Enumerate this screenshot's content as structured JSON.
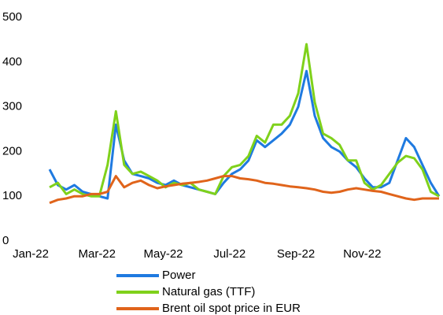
{
  "chart_data": {
    "type": "line",
    "categories": [
      "Jan-22",
      null,
      null,
      null,
      null,
      null,
      null,
      null,
      "Mar-22",
      null,
      null,
      null,
      null,
      null,
      null,
      null,
      "May-22",
      null,
      null,
      null,
      null,
      null,
      null,
      null,
      "Jul-22",
      null,
      null,
      null,
      null,
      null,
      null,
      null,
      "Sep-22",
      null,
      null,
      null,
      null,
      null,
      null,
      null,
      "Nov-22",
      null,
      null,
      null,
      null,
      null,
      null,
      null
    ],
    "series": [
      {
        "name": "Power",
        "color": "#1f7ae0",
        "values": [
          160,
          125,
          115,
          125,
          110,
          105,
          100,
          95,
          260,
          180,
          150,
          145,
          140,
          130,
          125,
          135,
          125,
          120,
          115,
          110,
          105,
          130,
          150,
          160,
          180,
          225,
          210,
          225,
          240,
          260,
          300,
          380,
          280,
          230,
          210,
          200,
          180,
          165,
          140,
          120,
          120,
          130,
          180,
          230,
          210,
          170,
          130,
          100
        ]
      },
      {
        "name": "Natural gas (TTF)",
        "color": "#7fd11b",
        "values": [
          120,
          130,
          105,
          115,
          105,
          100,
          100,
          170,
          290,
          170,
          150,
          155,
          145,
          135,
          120,
          130,
          125,
          130,
          115,
          110,
          105,
          145,
          165,
          170,
          190,
          235,
          220,
          260,
          260,
          280,
          330,
          440,
          310,
          240,
          230,
          215,
          180,
          180,
          130,
          115,
          125,
          150,
          175,
          190,
          185,
          160,
          110,
          100
        ]
      },
      {
        "name": "Brent oil spot price in EUR",
        "color": "#e0641b",
        "values": [
          85,
          92,
          95,
          100,
          100,
          105,
          105,
          110,
          145,
          120,
          130,
          135,
          125,
          118,
          122,
          125,
          128,
          130,
          132,
          135,
          140,
          145,
          145,
          140,
          138,
          135,
          130,
          128,
          125,
          122,
          120,
          118,
          115,
          110,
          108,
          110,
          115,
          118,
          115,
          112,
          110,
          105,
          100,
          95,
          92,
          95,
          95,
          95
        ]
      }
    ],
    "ylim": [
      0,
      500
    ],
    "yticks": [
      0,
      100,
      200,
      300,
      400,
      500
    ],
    "grid": false
  }
}
